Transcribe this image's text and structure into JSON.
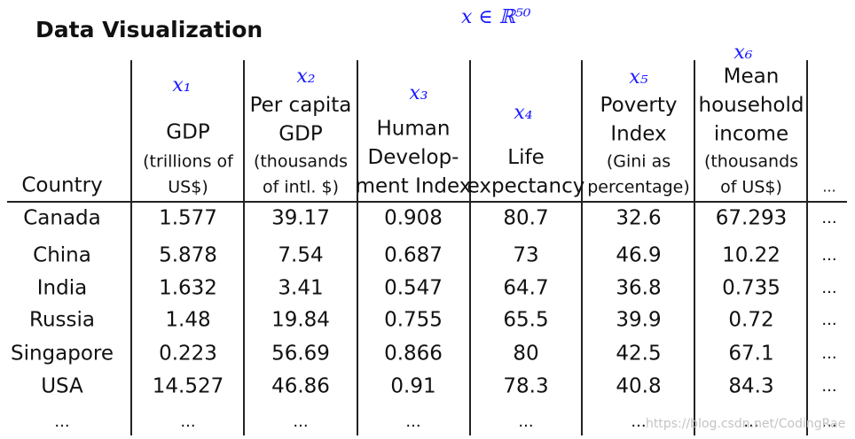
{
  "title": "Data Visualization",
  "annotations": {
    "top": "x ∈ ℝ⁵⁰",
    "features": [
      "x₁",
      "x₂",
      "x₃",
      "x₄",
      "x₅",
      "x₆"
    ]
  },
  "table": {
    "header": [
      {
        "main": [
          "Country"
        ],
        "sub": []
      },
      {
        "main": [
          "GDP"
        ],
        "sub": [
          "(trillions of",
          "US$)"
        ]
      },
      {
        "main": [
          "Per capita",
          "GDP"
        ],
        "sub": [
          "(thousands",
          "of intl. $)"
        ]
      },
      {
        "main": [
          "Human",
          "Develop-",
          "ment Index"
        ],
        "sub": []
      },
      {
        "main": [
          "Life",
          "expectancy"
        ],
        "sub": []
      },
      {
        "main": [
          "Poverty",
          "Index"
        ],
        "sub": [
          "(Gini as",
          "percentage)"
        ]
      },
      {
        "main": [
          "Mean",
          "household",
          "income"
        ],
        "sub": [
          "(thousands",
          "of US$)"
        ]
      },
      {
        "main": [
          "..."
        ],
        "sub": []
      }
    ],
    "rows": [
      [
        "Canada",
        1.577,
        39.17,
        0.908,
        80.7,
        32.6,
        67.293,
        "..."
      ],
      [
        "China",
        5.878,
        7.54,
        0.687,
        73,
        46.9,
        10.22,
        "..."
      ],
      [
        "India",
        1.632,
        3.41,
        0.547,
        64.7,
        36.8,
        0.735,
        "..."
      ],
      [
        "Russia",
        1.48,
        19.84,
        0.755,
        65.5,
        39.9,
        0.72,
        "..."
      ],
      [
        "Singapore",
        0.223,
        56.69,
        0.866,
        80,
        42.5,
        67.1,
        "..."
      ],
      [
        "USA",
        14.527,
        46.86,
        0.91,
        78.3,
        40.8,
        84.3,
        "..."
      ],
      [
        "...",
        "...",
        "...",
        "...",
        "...",
        "...",
        "...",
        "..."
      ]
    ]
  },
  "watermark": "https://blog.csdn.net/CodingRae"
}
